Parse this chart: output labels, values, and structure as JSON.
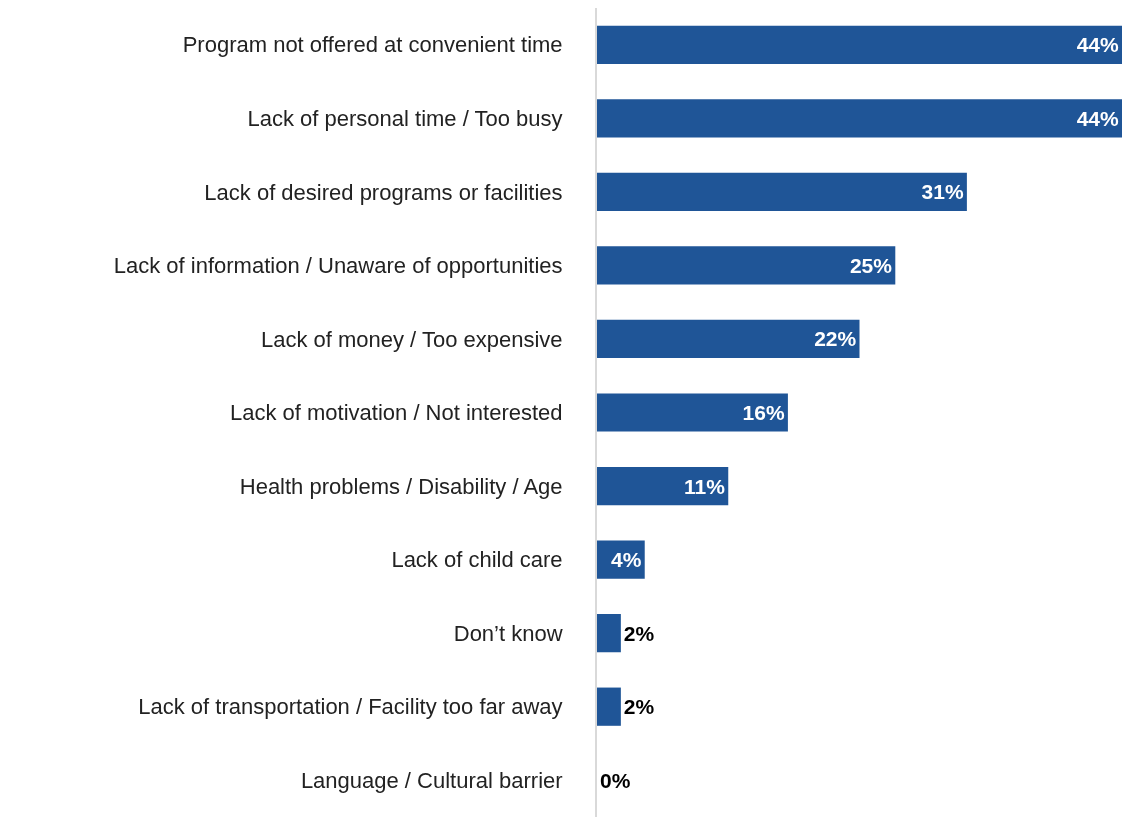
{
  "chart_data": {
    "type": "bar",
    "orientation": "horizontal",
    "legend": false,
    "value_labels": [
      "44%",
      "44%",
      "31%",
      "25%",
      "22%",
      "16%",
      "11%",
      "4%",
      "2%",
      "2%",
      "0%"
    ],
    "categories": [
      "Program not offered at convenient time",
      "Lack of personal time / Too busy",
      "Lack of desired programs or facilities",
      "Lack of information / Unaware of opportunities",
      "Lack of money / Too expensive",
      "Lack of motivation / Not interested",
      "Health problems / Disability / Age",
      "Lack of child care",
      "Don’t know",
      "Lack of transportation / Facility too far away",
      "Language / Cultural barrier"
    ],
    "values": [
      44,
      44,
      31,
      25,
      22,
      16,
      11,
      4,
      2,
      2,
      0
    ],
    "color": "#1f5597"
  }
}
